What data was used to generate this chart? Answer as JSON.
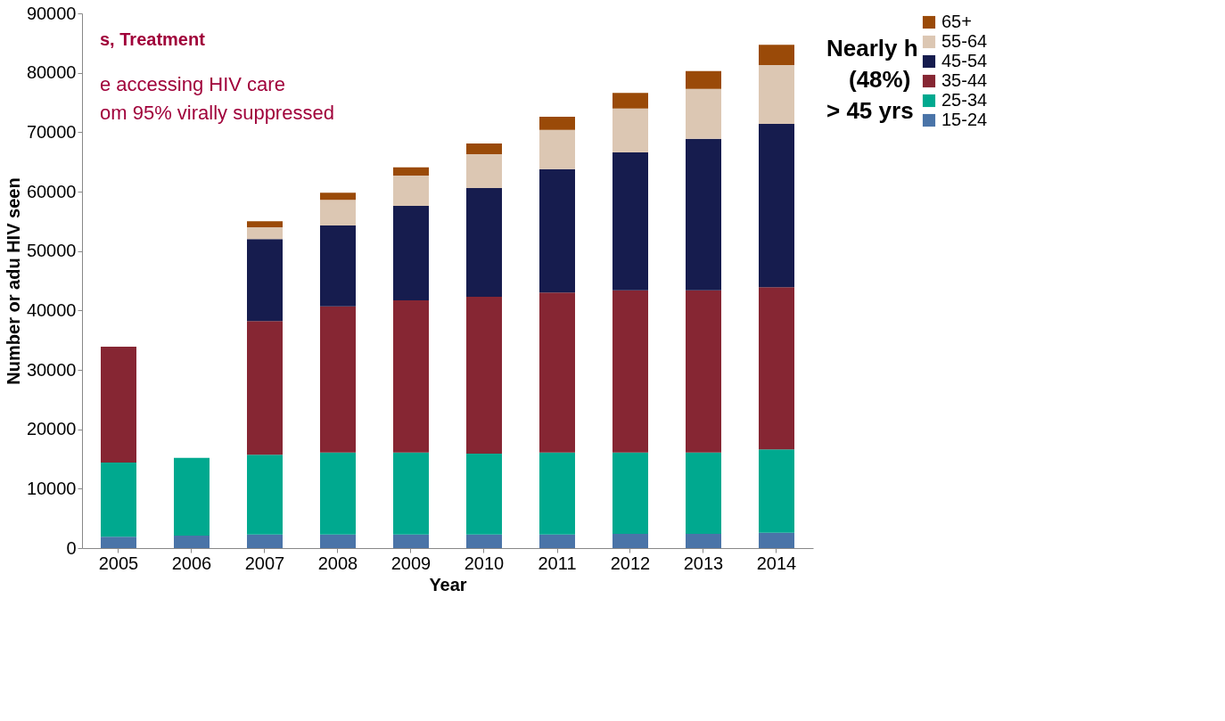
{
  "chart_data": {
    "type": "bar",
    "stacked": true,
    "xlabel": "Year",
    "ylabel": "Number or adu HIV seen",
    "categories": [
      "2005",
      "2006",
      "2007",
      "2008",
      "2009",
      "2010",
      "2011",
      "2012",
      "2013",
      "2014"
    ],
    "series": [
      {
        "name": "15-24",
        "color": "#4a74a8",
        "values": [
          1900,
          2100,
          2300,
          2300,
          2300,
          2300,
          2300,
          2400,
          2400,
          2600
        ]
      },
      {
        "name": "25-34",
        "color": "#00a98f",
        "values": [
          12500,
          13100,
          13400,
          13800,
          13800,
          13600,
          13800,
          13700,
          13700,
          14000
        ]
      },
      {
        "name": "35-44",
        "color": "#862633",
        "values": [
          19500,
          null,
          22500,
          24600,
          25600,
          26400,
          26900,
          27300,
          27300,
          27300
        ]
      },
      {
        "name": "45-54",
        "color": "#161c4e",
        "values": [
          null,
          null,
          13800,
          13600,
          15900,
          18300,
          20800,
          23200,
          25500,
          27500
        ]
      },
      {
        "name": "55-64",
        "color": "#dcc7b3",
        "values": [
          null,
          null,
          2000,
          4300,
          5100,
          5700,
          6600,
          7400,
          8400,
          9900
        ]
      },
      {
        "name": "65+",
        "color": "#9a4a08",
        "values": [
          null,
          null,
          1000,
          1200,
          1400,
          1800,
          2200,
          2600,
          3000,
          3400
        ]
      }
    ],
    "ylim": [
      0,
      90000
    ],
    "yticks": [
      0,
      10000,
      20000,
      30000,
      40000,
      50000,
      60000,
      70000,
      80000,
      90000
    ],
    "grid": false,
    "legend": "right",
    "annotations": [
      "s, Treatment",
      "e accessing HIV care",
      "om 95% virally suppressed",
      "Nearly h",
      "(48%)",
      "> 45 yrs"
    ]
  }
}
